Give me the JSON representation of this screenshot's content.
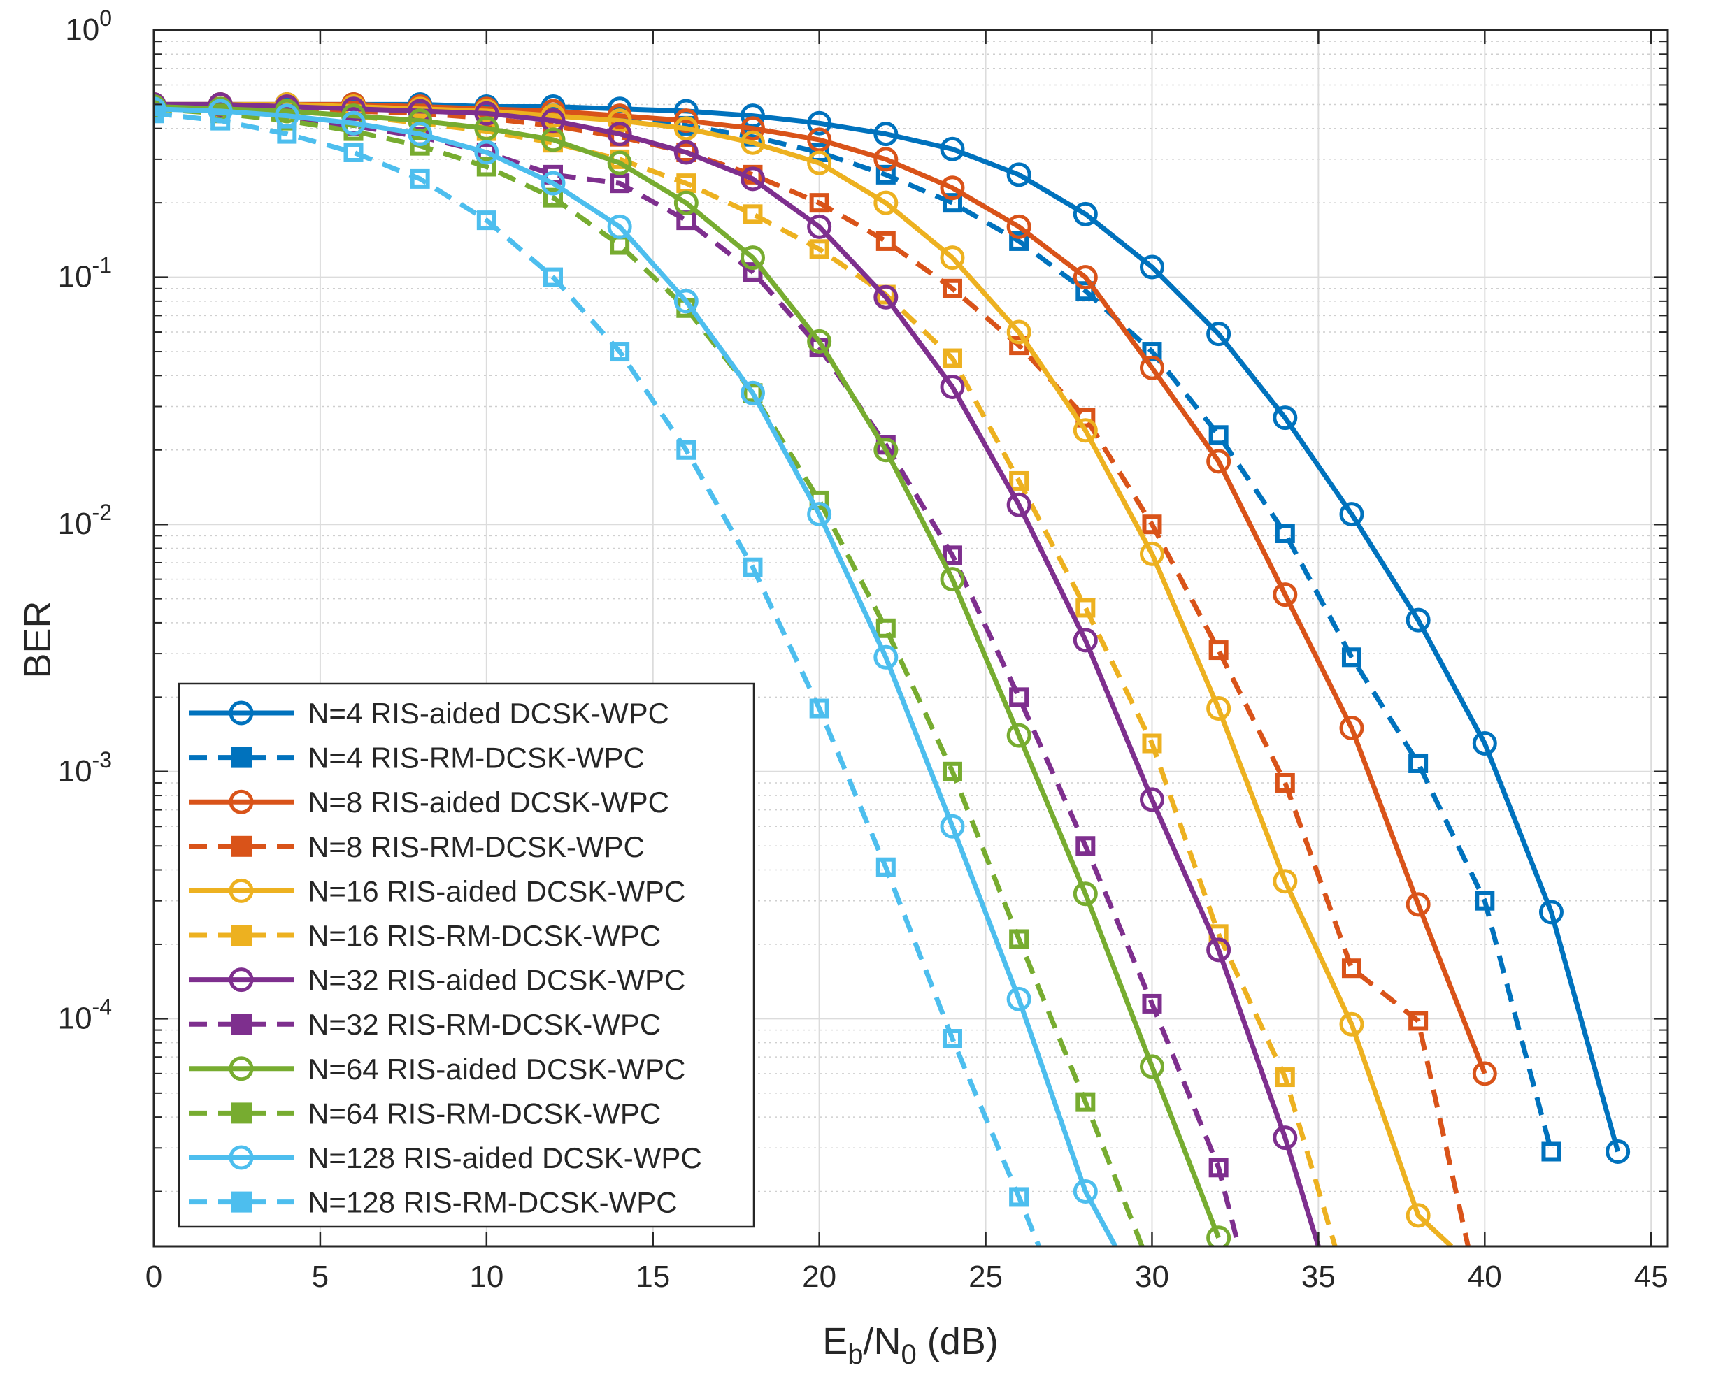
{
  "chart_data": {
    "type": "line",
    "title": "",
    "xlabel": {
      "base1": "E",
      "sub1": "b",
      "mid": "/N",
      "sub2": "0",
      "tail": " (dB)"
    },
    "ylabel": "BER",
    "xlim": [
      0,
      45.5
    ],
    "ylim": [
      1.2e-05,
      1
    ],
    "yscale": "log",
    "grid": true,
    "legend_position": "lower-left",
    "x_ticks": [
      "0",
      "5",
      "10",
      "15",
      "20",
      "25",
      "30",
      "35",
      "40",
      "45"
    ],
    "y_ticks": [
      {
        "base": "10",
        "exp": "0"
      },
      {
        "base": "10",
        "exp": "-1"
      },
      {
        "base": "10",
        "exp": "-2"
      },
      {
        "base": "10",
        "exp": "-3"
      },
      {
        "base": "10",
        "exp": "-4"
      }
    ],
    "series": [
      {
        "name": "N=4 RIS-aided DCSK-WPC",
        "color": "#0072BD",
        "style": "solid",
        "marker": "circle",
        "x": [
          0,
          2,
          4,
          6,
          8,
          10,
          12,
          14,
          16,
          18,
          20,
          22,
          24,
          26,
          28,
          30,
          32,
          34,
          36,
          38,
          40,
          42,
          44
        ],
        "y": [
          0.5,
          0.5,
          0.5,
          0.5,
          0.5,
          0.49,
          0.49,
          0.48,
          0.47,
          0.45,
          0.42,
          0.38,
          0.33,
          0.26,
          0.18,
          0.11,
          0.059,
          0.027,
          0.011,
          0.0041,
          0.0013,
          0.00027,
          2.9e-05
        ]
      },
      {
        "name": "N=4 RIS-RM-DCSK-WPC",
        "color": "#0072BD",
        "style": "dashed",
        "marker": "square",
        "x": [
          0,
          2,
          4,
          6,
          8,
          10,
          12,
          14,
          16,
          18,
          20,
          22,
          24,
          26,
          28,
          30,
          32,
          34,
          36,
          38,
          40,
          42
        ],
        "y": [
          0.49,
          0.49,
          0.49,
          0.49,
          0.48,
          0.47,
          0.46,
          0.44,
          0.41,
          0.37,
          0.32,
          0.26,
          0.2,
          0.14,
          0.088,
          0.05,
          0.023,
          0.0092,
          0.0029,
          0.00108,
          0.0003,
          2.9e-05
        ]
      },
      {
        "name": "N=8 RIS-aided DCSK-WPC",
        "color": "#D95319",
        "style": "solid",
        "marker": "circle",
        "x": [
          0,
          2,
          4,
          6,
          8,
          10,
          12,
          14,
          16,
          18,
          20,
          22,
          24,
          26,
          28,
          30,
          32,
          34,
          36,
          38,
          40
        ],
        "y": [
          0.5,
          0.5,
          0.5,
          0.5,
          0.49,
          0.48,
          0.47,
          0.45,
          0.43,
          0.4,
          0.36,
          0.3,
          0.23,
          0.16,
          0.1,
          0.043,
          0.018,
          0.0052,
          0.0015,
          0.00029,
          6e-05
        ]
      },
      {
        "name": "N=8 RIS-RM-DCSK-WPC",
        "color": "#D95319",
        "style": "dashed",
        "marker": "square",
        "x": [
          0,
          2,
          4,
          6,
          8,
          10,
          12,
          14,
          16,
          18,
          20,
          22,
          24,
          26,
          28,
          30,
          32,
          34,
          36,
          38,
          39.5
        ],
        "y": [
          0.49,
          0.49,
          0.48,
          0.47,
          0.46,
          0.44,
          0.41,
          0.37,
          0.32,
          0.26,
          0.2,
          0.14,
          0.09,
          0.053,
          0.027,
          0.01,
          0.0031,
          0.0009,
          0.00016,
          9.8e-05,
          1.2e-05
        ]
      },
      {
        "name": "N=16 RIS-aided DCSK-WPC",
        "color": "#EDB120",
        "style": "solid",
        "marker": "circle",
        "x": [
          0,
          2,
          4,
          6,
          8,
          10,
          12,
          14,
          16,
          18,
          20,
          22,
          24,
          26,
          28,
          30,
          32,
          34,
          36,
          38,
          39
        ],
        "y": [
          0.5,
          0.5,
          0.5,
          0.49,
          0.48,
          0.47,
          0.45,
          0.43,
          0.4,
          0.35,
          0.29,
          0.2,
          0.12,
          0.06,
          0.024,
          0.0076,
          0.0018,
          0.00036,
          9.5e-05,
          1.6e-05,
          1.2e-05
        ]
      },
      {
        "name": "N=16 RIS-RM-DCSK-WPC",
        "color": "#EDB120",
        "style": "dashed",
        "marker": "square",
        "x": [
          0,
          2,
          4,
          6,
          8,
          10,
          12,
          14,
          16,
          18,
          20,
          22,
          24,
          26,
          28,
          30,
          32,
          34,
          35.5
        ],
        "y": [
          0.49,
          0.48,
          0.47,
          0.45,
          0.42,
          0.39,
          0.35,
          0.3,
          0.24,
          0.18,
          0.13,
          0.085,
          0.047,
          0.015,
          0.0046,
          0.0013,
          0.00022,
          5.8e-05,
          1.2e-05
        ]
      },
      {
        "name": "N=32 RIS-aided DCSK-WPC",
        "color": "#7E2F8E",
        "style": "solid",
        "marker": "circle",
        "x": [
          0,
          2,
          4,
          6,
          8,
          10,
          12,
          14,
          16,
          18,
          20,
          22,
          24,
          26,
          28,
          30,
          32,
          34,
          35
        ],
        "y": [
          0.5,
          0.5,
          0.49,
          0.48,
          0.47,
          0.46,
          0.43,
          0.38,
          0.32,
          0.25,
          0.16,
          0.083,
          0.036,
          0.012,
          0.0034,
          0.00077,
          0.00019,
          3.3e-05,
          1.2e-05
        ]
      },
      {
        "name": "N=32 RIS-RM-DCSK-WPC",
        "color": "#7E2F8E",
        "style": "dashed",
        "marker": "square",
        "x": [
          0,
          2,
          4,
          6,
          8,
          10,
          12,
          14,
          16,
          18,
          20,
          22,
          24,
          26,
          28,
          30,
          32,
          32.6
        ],
        "y": [
          0.48,
          0.47,
          0.44,
          0.41,
          0.37,
          0.32,
          0.26,
          0.24,
          0.17,
          0.105,
          0.052,
          0.021,
          0.0075,
          0.002,
          0.0005,
          0.000115,
          2.5e-05,
          1.2e-05
        ]
      },
      {
        "name": "N=64 RIS-aided DCSK-WPC",
        "color": "#77AC30",
        "style": "solid",
        "marker": "circle",
        "x": [
          0,
          2,
          4,
          6,
          8,
          10,
          12,
          14,
          16,
          18,
          20,
          22,
          24,
          26,
          28,
          30,
          32
        ],
        "y": [
          0.49,
          0.48,
          0.47,
          0.45,
          0.43,
          0.4,
          0.36,
          0.29,
          0.2,
          0.12,
          0.055,
          0.02,
          0.006,
          0.0014,
          0.00032,
          6.4e-05,
          1.3e-05
        ]
      },
      {
        "name": "N=64 RIS-RM-DCSK-WPC",
        "color": "#77AC30",
        "style": "dashed",
        "marker": "square",
        "x": [
          0,
          2,
          4,
          6,
          8,
          10,
          12,
          14,
          16,
          18,
          20,
          22,
          24,
          26,
          28,
          29.7
        ],
        "y": [
          0.48,
          0.46,
          0.43,
          0.39,
          0.34,
          0.28,
          0.21,
          0.135,
          0.075,
          0.034,
          0.0125,
          0.0038,
          0.001,
          0.00021,
          4.6e-05,
          1.2e-05
        ]
      },
      {
        "name": "N=128 RIS-aided DCSK-WPC",
        "color": "#4DBEEE",
        "style": "solid",
        "marker": "circle",
        "x": [
          0,
          2,
          4,
          6,
          8,
          10,
          12,
          14,
          16,
          18,
          20,
          22,
          24,
          26,
          28,
          28.9
        ],
        "y": [
          0.48,
          0.47,
          0.45,
          0.42,
          0.38,
          0.32,
          0.24,
          0.16,
          0.08,
          0.034,
          0.011,
          0.0029,
          0.0006,
          0.00012,
          2e-05,
          1.2e-05
        ]
      },
      {
        "name": "N=128 RIS-RM-DCSK-WPC",
        "color": "#4DBEEE",
        "style": "dashed",
        "marker": "square",
        "x": [
          0,
          2,
          4,
          6,
          8,
          10,
          12,
          14,
          16,
          18,
          20,
          22,
          24,
          26,
          26.6
        ],
        "y": [
          0.46,
          0.43,
          0.38,
          0.32,
          0.25,
          0.17,
          0.1,
          0.05,
          0.02,
          0.0067,
          0.0018,
          0.00041,
          8.3e-05,
          1.9e-05,
          1.2e-05
        ]
      }
    ]
  }
}
